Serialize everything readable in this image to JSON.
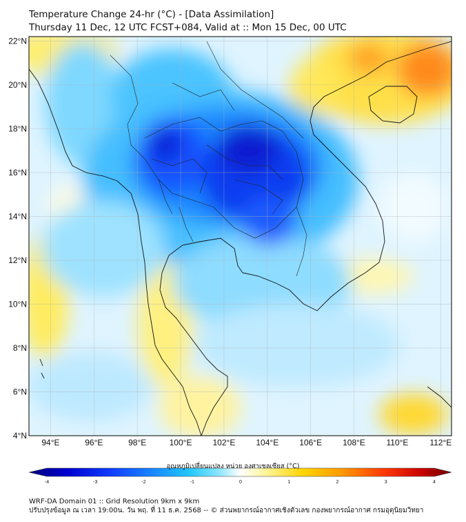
{
  "title": {
    "line1": "Temperature Change 24-hr (°C) - [Data Assimilation]",
    "line2": "Thursday 11 Dec, 12 UTC FCST+084, Valid at :: Mon 15 Dec, 00 UTC"
  },
  "map": {
    "lat_labels": [
      "22°N",
      "20°N",
      "18°N",
      "16°N",
      "14°N",
      "12°N",
      "10°N",
      "8°N",
      "6°N",
      "4°N"
    ],
    "lat_values": [
      22,
      20,
      18,
      16,
      14,
      12,
      10,
      8,
      6,
      4
    ],
    "lon_labels": [
      "94°E",
      "96°E",
      "98°E",
      "100°E",
      "102°E",
      "104°E",
      "106°E",
      "108°E",
      "110°E",
      "112°E"
    ],
    "lon_values": [
      94,
      96,
      98,
      100,
      102,
      104,
      106,
      108,
      110,
      112
    ],
    "extent": {
      "lon_min": 93,
      "lon_max": 112.5,
      "lat_min": 4,
      "lat_max": 22.2
    }
  },
  "colorbar": {
    "label": "อุณหภูมิเปลี่ยนแปลง หน่วย องศาเซลเซียส (°C)",
    "ticks": [
      "-4",
      "-3",
      "-2",
      "-1",
      "0",
      "1",
      "2",
      "3",
      "4"
    ],
    "tick_values": [
      -4,
      -3,
      -2,
      -1,
      0,
      1,
      2,
      3,
      4
    ],
    "colors": [
      "#00007a",
      "#0000d0",
      "#1040ff",
      "#1a8cff",
      "#22c8ff",
      "#8de6ff",
      "#ffffff",
      "#fff59a",
      "#ffd400",
      "#ff9a00",
      "#ff3a00",
      "#c80000",
      "#6e0000"
    ]
  },
  "footer": {
    "line1": "WRF-DA Domain 01 :: Grid Resolution 9km x 9km",
    "line2": "ปรับปรุงข้อมูล ณ เวลา 19:00น. วัน พฤ. ที่ 11 ธ.ค. 2568 -- © ส่วนพยากรณ์อากาศเชิงตัวเลข กองพยากรณ์อากาศ กรมอุตุนิยมวิทยา"
  }
}
